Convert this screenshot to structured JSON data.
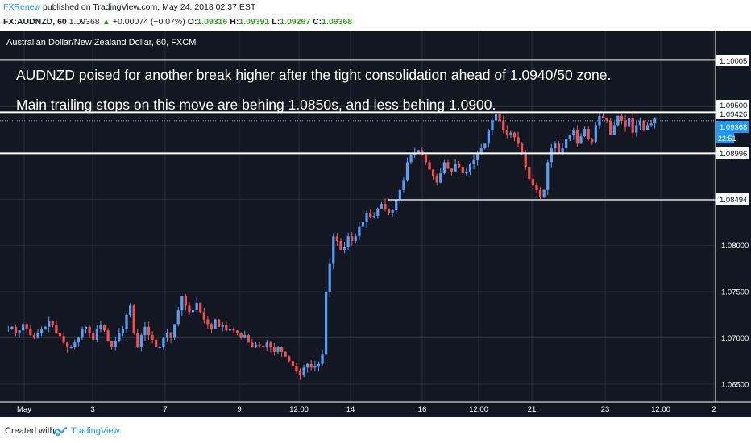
{
  "header": {
    "author": "FXRenew",
    "published": "published on TradingView.com, May 24, 2018 02:37 EST",
    "symbol": "FX:AUDNZD, 60",
    "last": "1.09368",
    "change_arrow": "▲",
    "change": "+0.00074 (+0.07%)",
    "o_label": "O:",
    "o": "1.09316",
    "h_label": "H:",
    "h": "1.09391",
    "l_label": "L:",
    "l": "1.09267",
    "c_label": "C:",
    "c": "1.09368"
  },
  "chart_title": "Australian Dollar/New Zealand Dollar, 60, FXCM",
  "annotations": [
    "AUDNZD poised for another break higher after the tight consolidation ahead of 1.0940/50 zone.",
    "Main trailing stops on this move are behing 1.0850s, and less behing 1.0900."
  ],
  "price_labels": {
    "level_1": "1.10005",
    "level_2": "1.09500",
    "level_3": "1.09426",
    "current": "1.09368",
    "countdown": "22:51",
    "level_4": "1.08996",
    "level_5": "1.08494"
  },
  "x_ticks": [
    "May",
    "3",
    "7",
    "9",
    "12:00",
    "14",
    "16",
    "12:00",
    "21",
    "23",
    "12:00",
    "2"
  ],
  "footer": {
    "created": "Created with",
    "brand": "TradingView"
  },
  "colors": {
    "background": "#131722",
    "up": "#5b9cf6",
    "down": "#ef5350",
    "current_tag": "#2196f3",
    "text": "#ffffff"
  },
  "chart_data": {
    "type": "candlestick",
    "title": "Australian Dollar/New Zealand Dollar, 60, FXCM",
    "y_ticks": [
      1.065,
      1.07,
      1.075,
      1.08,
      1.085,
      1.09,
      1.095,
      1.1
    ],
    "y_tick_labels": [
      "1.06500",
      "1.07000",
      "1.07500",
      "1.08000",
      "",
      "",
      "",
      ""
    ],
    "ylim": [
      1.0625,
      1.1035
    ],
    "horizontal_levels": [
      1.10005,
      1.095,
      1.09426,
      1.08996,
      1.08494
    ],
    "grid": true,
    "approx_close_path": [
      [
        1.071,
        1.0712,
        1.0705,
        1.0708,
        1.0715,
        1.071,
        1.0703,
        1.07,
        1.0705,
        1.0709,
        1.0712,
        1.0718,
        1.0714,
        1.0705,
        1.0702,
        1.0695
      ],
      [
        1.069,
        1.069,
        1.0695,
        1.07,
        1.071,
        1.0712,
        1.0705,
        1.0698,
        1.071,
        1.0714,
        1.0708,
        1.0697,
        1.069,
        1.0697,
        1.0705,
        1.071
      ],
      [
        1.0725,
        1.0735,
        1.0705,
        1.069,
        1.0703,
        1.0712,
        1.0703,
        1.0698,
        1.069,
        1.069,
        1.07,
        1.0705,
        1.07,
        1.0715,
        1.073,
        1.0745
      ],
      [
        1.0735,
        1.0728,
        1.073,
        1.0738,
        1.0728,
        1.072,
        1.0715,
        1.071,
        1.072,
        1.0712,
        1.0714,
        1.0708,
        1.071,
        1.0708,
        1.0705,
        1.07
      ],
      [
        1.0703,
        1.0695,
        1.069,
        1.0693,
        1.0692,
        1.069,
        1.0695,
        1.069,
        1.0685,
        1.069,
        1.0685,
        1.068,
        1.0675,
        1.067,
        1.0664,
        1.066
      ],
      [
        1.0668,
        1.0672,
        1.0668,
        1.067,
        1.0672,
        1.0682,
        1.075,
        1.078,
        1.081,
        1.0805,
        1.0795,
        1.0798,
        1.081,
        1.0805,
        1.081,
        1.082
      ],
      [
        1.0825,
        1.0835,
        1.083,
        1.0832,
        1.084,
        1.0845,
        1.084,
        1.0835,
        1.0838,
        1.085,
        1.086,
        1.087,
        1.089,
        1.0898,
        1.09,
        1.0903
      ],
      [
        1.0898,
        1.089,
        1.0882,
        1.0875,
        1.0868,
        1.0878,
        1.089,
        1.0883,
        1.088,
        1.0888,
        1.0885,
        1.0878,
        1.088,
        1.0888,
        1.0892,
        1.09
      ],
      [
        1.0905,
        1.091,
        1.0925,
        1.0935,
        1.0942,
        1.0935,
        1.0925,
        1.092,
        1.0922,
        1.0917,
        1.091,
        1.09,
        1.0885,
        1.0872,
        1.0865,
        1.086
      ],
      [
        1.0852,
        1.086,
        1.089,
        1.0905,
        1.091,
        1.09,
        1.0905,
        1.0915,
        1.092,
        1.0925,
        1.091,
        1.0918,
        1.0926,
        1.0915,
        1.0912,
        1.093
      ],
      [
        1.094,
        1.0938,
        1.0935,
        1.092,
        1.093,
        1.094,
        1.0935,
        1.0928,
        1.0938,
        1.0922,
        1.093,
        1.0935,
        1.0925,
        1.093,
        1.0932,
        1.0937
      ]
    ]
  }
}
